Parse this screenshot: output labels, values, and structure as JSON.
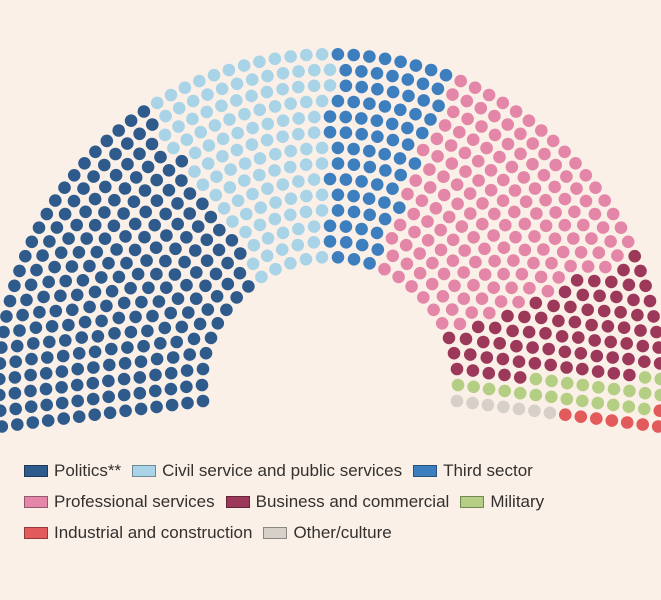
{
  "chart_data": {
    "type": "parliament",
    "series": [
      {
        "name": "Politics**",
        "color": "#2e5a8c",
        "value": 232
      },
      {
        "name": "Civil service and public services",
        "color": "#a9d3e6",
        "value": 117
      },
      {
        "name": "Third sector",
        "color": "#3d7fbe",
        "value": 78
      },
      {
        "name": "Professional services",
        "color": "#e386a8",
        "value": 160
      },
      {
        "name": "Business and commercial",
        "color": "#9c3859",
        "value": 75
      },
      {
        "name": "Military",
        "color": "#b4cf83",
        "value": 24
      },
      {
        "name": "Industrial and construction",
        "color": "#e25a5a",
        "value": 8
      },
      {
        "name": "Other/culture",
        "color": "#d6d0c9",
        "value": 7
      }
    ]
  }
}
